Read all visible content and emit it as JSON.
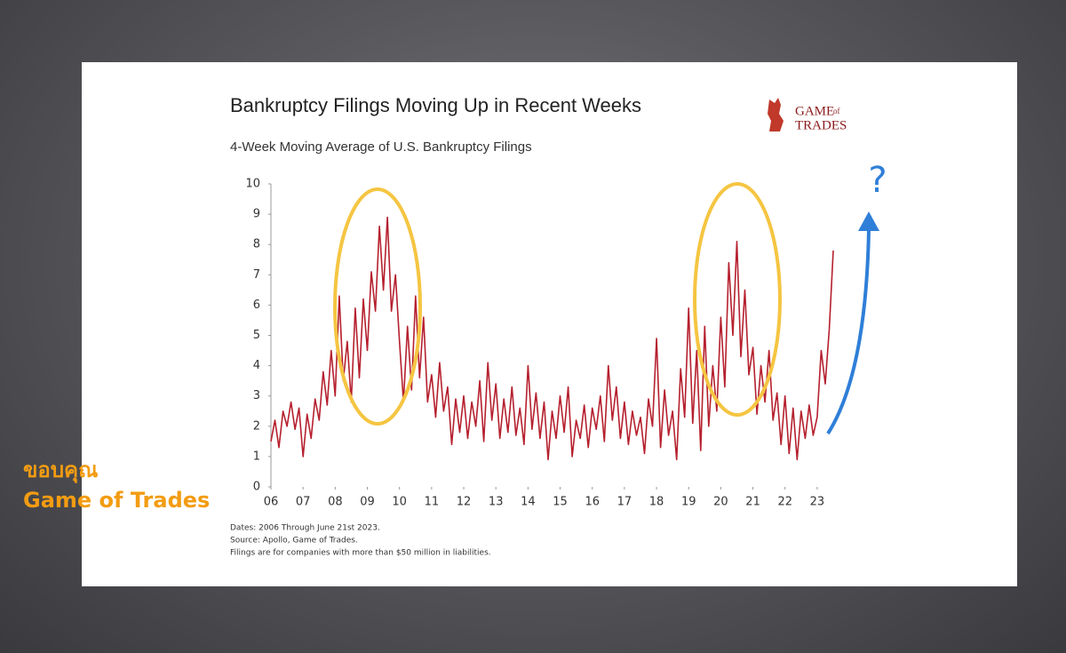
{
  "chart_data": {
    "type": "line",
    "title": "Bankruptcy Filings Moving Up in Recent Weeks",
    "subtitle": "4-Week Moving Average of U.S. Bankruptcy Filings",
    "notes": [
      "Dates: 2006 Through June 21st 2023.",
      "Source: Apollo, Game of Trades.",
      "Filings are for companies with more than $50 million in liabilities."
    ],
    "annotation": "?",
    "color": "#b5202e",
    "x": [
      2006,
      2006.125,
      2006.25,
      2006.375,
      2006.5,
      2006.625,
      2006.75,
      2006.875,
      2007,
      2007.125,
      2007.25,
      2007.375,
      2007.5,
      2007.625,
      2007.75,
      2007.875,
      2008,
      2008.125,
      2008.25,
      2008.375,
      2008.5,
      2008.625,
      2008.75,
      2008.875,
      2009,
      2009.125,
      2009.25,
      2009.375,
      2009.5,
      2009.625,
      2009.75,
      2009.875,
      2010,
      2010.125,
      2010.25,
      2010.375,
      2010.5,
      2010.625,
      2010.75,
      2010.875,
      2011,
      2011.125,
      2011.25,
      2011.375,
      2011.5,
      2011.625,
      2011.75,
      2011.875,
      2012,
      2012.125,
      2012.25,
      2012.375,
      2012.5,
      2012.625,
      2012.75,
      2012.875,
      2013,
      2013.125,
      2013.25,
      2013.375,
      2013.5,
      2013.625,
      2013.75,
      2013.875,
      2014,
      2014.125,
      2014.25,
      2014.375,
      2014.5,
      2014.625,
      2014.75,
      2014.875,
      2015,
      2015.125,
      2015.25,
      2015.375,
      2015.5,
      2015.625,
      2015.75,
      2015.875,
      2016,
      2016.125,
      2016.25,
      2016.375,
      2016.5,
      2016.625,
      2016.75,
      2016.875,
      2017,
      2017.125,
      2017.25,
      2017.375,
      2017.5,
      2017.625,
      2017.75,
      2017.875,
      2018,
      2018.125,
      2018.25,
      2018.375,
      2018.5,
      2018.625,
      2018.75,
      2018.875,
      2019,
      2019.125,
      2019.25,
      2019.375,
      2019.5,
      2019.625,
      2019.75,
      2019.875,
      2020,
      2020.125,
      2020.25,
      2020.375,
      2020.5,
      2020.625,
      2020.75,
      2020.875,
      2021,
      2021.125,
      2021.25,
      2021.375,
      2021.5,
      2021.625,
      2021.75,
      2021.875,
      2022,
      2022.125,
      2022.25,
      2022.375,
      2022.5,
      2022.625,
      2022.75,
      2022.875,
      2023,
      2023.125,
      2023.25,
      2023.375,
      2023.5
    ],
    "values": [
      1.5,
      2.2,
      1.3,
      2.5,
      2.0,
      2.8,
      1.9,
      2.6,
      1.0,
      2.4,
      1.6,
      2.9,
      2.2,
      3.8,
      2.7,
      4.5,
      3.0,
      6.3,
      3.5,
      4.8,
      2.8,
      5.9,
      3.6,
      6.2,
      4.5,
      7.1,
      5.8,
      8.6,
      6.5,
      8.9,
      5.8,
      7.0,
      4.8,
      2.8,
      5.3,
      3.2,
      6.3,
      3.6,
      5.6,
      2.8,
      3.7,
      2.3,
      4.1,
      2.5,
      3.3,
      1.4,
      2.9,
      1.8,
      3.0,
      1.6,
      2.8,
      2.0,
      3.5,
      1.5,
      4.1,
      2.2,
      3.4,
      1.6,
      2.9,
      1.8,
      3.3,
      1.7,
      2.6,
      1.4,
      4.0,
      1.9,
      3.1,
      1.6,
      2.8,
      0.9,
      2.5,
      1.6,
      3.0,
      1.8,
      3.3,
      1.0,
      2.2,
      1.6,
      2.7,
      1.3,
      2.6,
      1.9,
      3.0,
      1.5,
      4.0,
      2.2,
      3.3,
      1.6,
      2.8,
      1.4,
      2.5,
      1.7,
      2.3,
      1.1,
      2.9,
      2.0,
      4.9,
      1.3,
      3.2,
      1.7,
      2.5,
      0.9,
      3.9,
      2.3,
      5.9,
      2.1,
      4.5,
      1.2,
      5.3,
      2.0,
      4.0,
      2.5,
      5.6,
      3.3,
      7.4,
      5.0,
      8.1,
      4.3,
      6.5,
      3.7,
      4.6,
      2.4,
      4.0,
      2.8,
      4.5,
      2.2,
      3.1,
      1.4,
      3.0,
      1.1,
      2.6,
      0.9,
      2.5,
      1.6,
      2.7,
      1.7,
      2.3,
      4.5,
      3.4,
      5.2,
      7.8
    ],
    "xlim": [
      2006,
      2023.5
    ],
    "xticks": [
      {
        "value": 2006,
        "label": "06"
      },
      {
        "value": 2007,
        "label": "07"
      },
      {
        "value": 2008,
        "label": "08"
      },
      {
        "value": 2009,
        "label": "09"
      },
      {
        "value": 2010,
        "label": "10"
      },
      {
        "value": 2011,
        "label": "11"
      },
      {
        "value": 2012,
        "label": "12"
      },
      {
        "value": 2013,
        "label": "13"
      },
      {
        "value": 2014,
        "label": "14"
      },
      {
        "value": 2015,
        "label": "15"
      },
      {
        "value": 2016,
        "label": "16"
      },
      {
        "value": 2017,
        "label": "17"
      },
      {
        "value": 2018,
        "label": "18"
      },
      {
        "value": 2019,
        "label": "19"
      },
      {
        "value": 2020,
        "label": "20"
      },
      {
        "value": 2021,
        "label": "21"
      },
      {
        "value": 2022,
        "label": "22"
      },
      {
        "value": 2023,
        "label": "23"
      }
    ],
    "ylim": [
      0,
      10
    ],
    "yticks": [
      0,
      1,
      2,
      3,
      4,
      5,
      6,
      7,
      8,
      9,
      10
    ],
    "grid": false
  },
  "logo": {
    "top": "GAME",
    "small": "of",
    "bottom": "TRADES"
  },
  "overlay": {
    "thanks": "ขอบคุณ",
    "credit": "Game of Trades"
  }
}
